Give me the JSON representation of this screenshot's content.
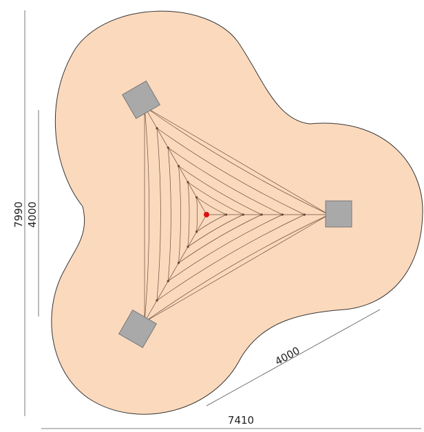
{
  "dimensions": {
    "overall_height": "7990",
    "inner_height": "4000",
    "side": "4000",
    "overall_width": "7410"
  }
}
